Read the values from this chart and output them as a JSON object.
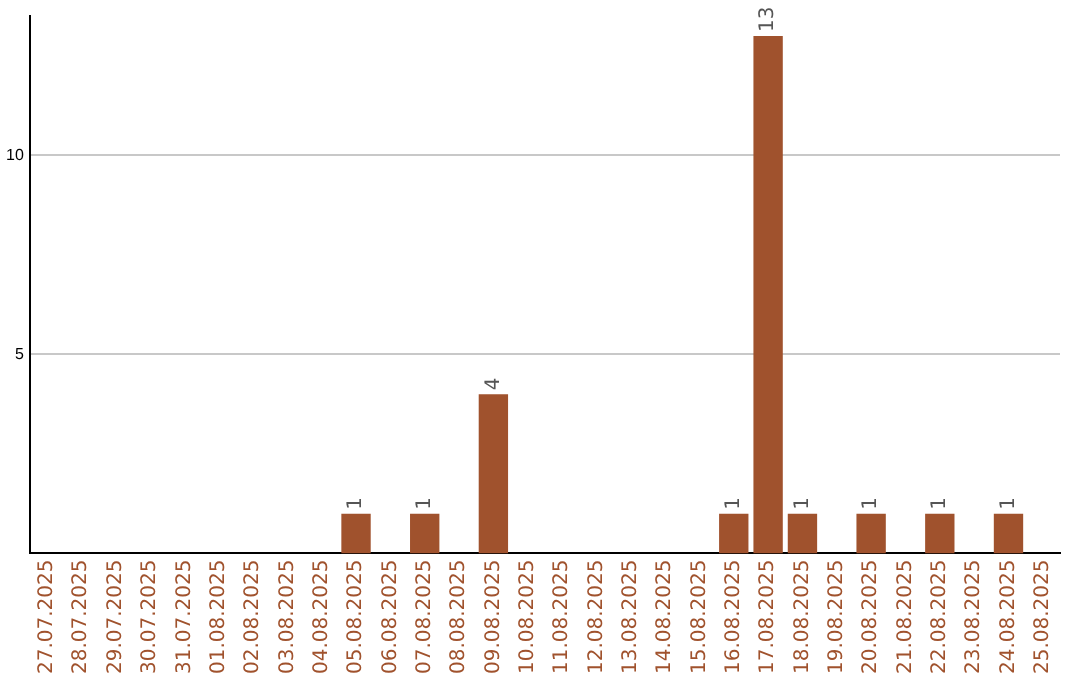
{
  "chart_data": {
    "type": "bar",
    "categories": [
      "27.07.2025",
      "28.07.2025",
      "29.07.2025",
      "30.07.2025",
      "31.07.2025",
      "01.08.2025",
      "02.08.2025",
      "03.08.2025",
      "04.08.2025",
      "05.08.2025",
      "06.08.2025",
      "07.08.2025",
      "08.08.2025",
      "09.08.2025",
      "10.08.2025",
      "11.08.2025",
      "12.08.2025",
      "13.08.2025",
      "14.08.2025",
      "15.08.2025",
      "16.08.2025",
      "17.08.2025",
      "18.08.2025",
      "19.08.2025",
      "20.08.2025",
      "21.08.2025",
      "22.08.2025",
      "23.08.2025",
      "24.08.2025",
      "25.08.2025"
    ],
    "values": [
      0,
      0,
      0,
      0,
      0,
      0,
      0,
      0,
      0,
      1,
      0,
      1,
      0,
      4,
      0,
      0,
      0,
      0,
      0,
      0,
      1,
      13,
      1,
      0,
      1,
      0,
      1,
      0,
      1,
      0
    ],
    "value_labels": [
      null,
      null,
      null,
      null,
      null,
      null,
      null,
      null,
      null,
      "1",
      null,
      "1",
      null,
      "4",
      null,
      null,
      null,
      null,
      null,
      null,
      "1",
      "13",
      "1",
      null,
      "1",
      null,
      "1",
      null,
      "1",
      null
    ],
    "color": "#a0522d",
    "ylim": [
      0,
      13.5
    ],
    "yticks": [
      5,
      10
    ],
    "grid": "y",
    "legend": false
  }
}
